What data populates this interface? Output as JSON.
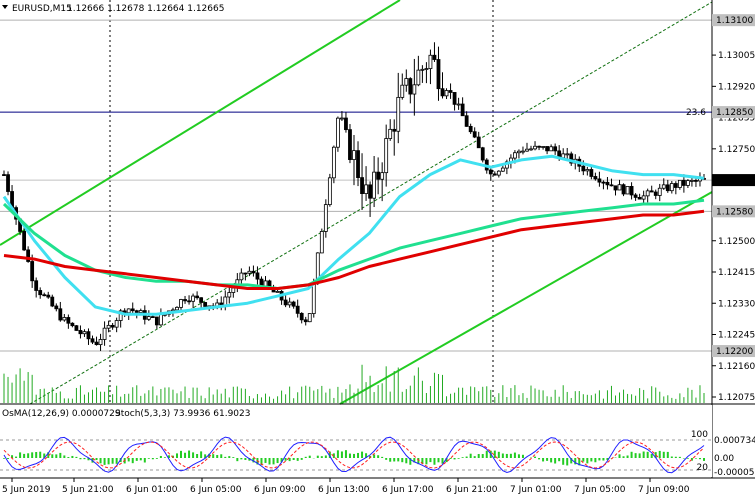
{
  "header": {
    "symbol_timeframe": "EURUSD,M15",
    "ohlc": "1.12666 1.12678 1.12664 1.12665"
  },
  "price_axis": {
    "ticks": [
      "1.13095",
      "1.13005",
      "1.12920",
      "1.12835",
      "1.12750",
      "1.12665",
      "1.12580",
      "1.12500",
      "1.12415",
      "1.12330",
      "1.12245",
      "1.12160",
      "1.12075"
    ],
    "marked_levels": [
      {
        "value": "1.13100",
        "kind": "level"
      },
      {
        "value": "1.12850",
        "kind": "fibo"
      },
      {
        "value": "1.12665",
        "kind": "current"
      },
      {
        "value": "1.12580",
        "kind": "level"
      },
      {
        "value": "1.12200",
        "kind": "level"
      }
    ],
    "fibo_label": "23.6"
  },
  "time_axis": {
    "labels": [
      "5 Jun 2019",
      "5 Jun 21:00",
      "6 Jun 01:00",
      "6 Jun 05:00",
      "6 Jun 09:00",
      "6 Jun 13:00",
      "6 Jun 17:00",
      "6 Jun 21:00",
      "7 Jun 01:00",
      "7 Jun 05:00",
      "7 Jun 09:00"
    ]
  },
  "indicator": {
    "osma_label": "OsMA(12,26,9) 0.0000729",
    "stoch_label": "Stoch(5,3,3) 73.9936 61.9023",
    "ticks": [
      "0.0007341",
      "0.00",
      "-0.0000577"
    ],
    "stoch_ticks": [
      "100",
      "20"
    ]
  },
  "colors": {
    "candle": "#000000",
    "ma_fast": "#40e0f0",
    "ma_mid": "#20e090",
    "ma_slow": "#e00000",
    "channel": "#22cc22",
    "level": "#000080",
    "current_price_bg": "#000000",
    "level_label_bg": "#c0c0c0"
  },
  "chart_data": {
    "type": "line",
    "title": "",
    "xlabel": "",
    "ylabel": "",
    "ylim": [
      1.12075,
      1.13095
    ],
    "x": [
      "5 Jun 17:00",
      "5 Jun 19:00",
      "5 Jun 21:00",
      "5 Jun 23:00",
      "6 Jun 01:00",
      "6 Jun 03:00",
      "6 Jun 05:00",
      "6 Jun 07:00",
      "6 Jun 09:00",
      "6 Jun 11:00",
      "6 Jun 13:00",
      "6 Jun 14:00",
      "6 Jun 15:00",
      "6 Jun 16:00",
      "6 Jun 17:00",
      "6 Jun 19:00",
      "6 Jun 21:00",
      "6 Jun 23:00",
      "7 Jun 01:00",
      "7 Jun 03:00",
      "7 Jun 05:00",
      "7 Jun 07:00",
      "7 Jun 09:00",
      "7 Jun 11:00"
    ],
    "series": [
      {
        "values": [
          1.1268,
          1.1238,
          1.1228,
          1.1222,
          1.1232,
          1.1228,
          1.1235,
          1.1232,
          1.1242,
          1.1235,
          1.1228,
          1.1285,
          1.126,
          1.1288,
          1.13,
          1.1285,
          1.1268,
          1.1275,
          1.1275,
          1.127,
          1.1265,
          1.1262,
          1.1265,
          1.12665
        ]
      },
      {
        "values": [
          1.1262,
          1.125,
          1.124,
          1.1232,
          1.123,
          1.123,
          1.1231,
          1.1232,
          1.1233,
          1.1235,
          1.1237,
          1.1245,
          1.1252,
          1.1262,
          1.1268,
          1.1272,
          1.127,
          1.1272,
          1.1273,
          1.1271,
          1.1269,
          1.1268,
          1.1268,
          1.1267
        ]
      },
      {
        "values": [
          1.126,
          1.1252,
          1.1246,
          1.1242,
          1.124,
          1.1239,
          1.1239,
          1.1238,
          1.1238,
          1.1237,
          1.1238,
          1.1242,
          1.1245,
          1.1248,
          1.125,
          1.1252,
          1.1254,
          1.1256,
          1.1257,
          1.1258,
          1.1259,
          1.126,
          1.126,
          1.1261
        ]
      },
      {
        "values": [
          1.1246,
          1.1245,
          1.1243,
          1.1242,
          1.1241,
          1.124,
          1.1239,
          1.1238,
          1.1237,
          1.1237,
          1.1238,
          1.124,
          1.1243,
          1.1245,
          1.1247,
          1.1249,
          1.1251,
          1.1253,
          1.1254,
          1.1255,
          1.1256,
          1.1257,
          1.1257,
          1.1258
        ]
      }
    ]
  }
}
